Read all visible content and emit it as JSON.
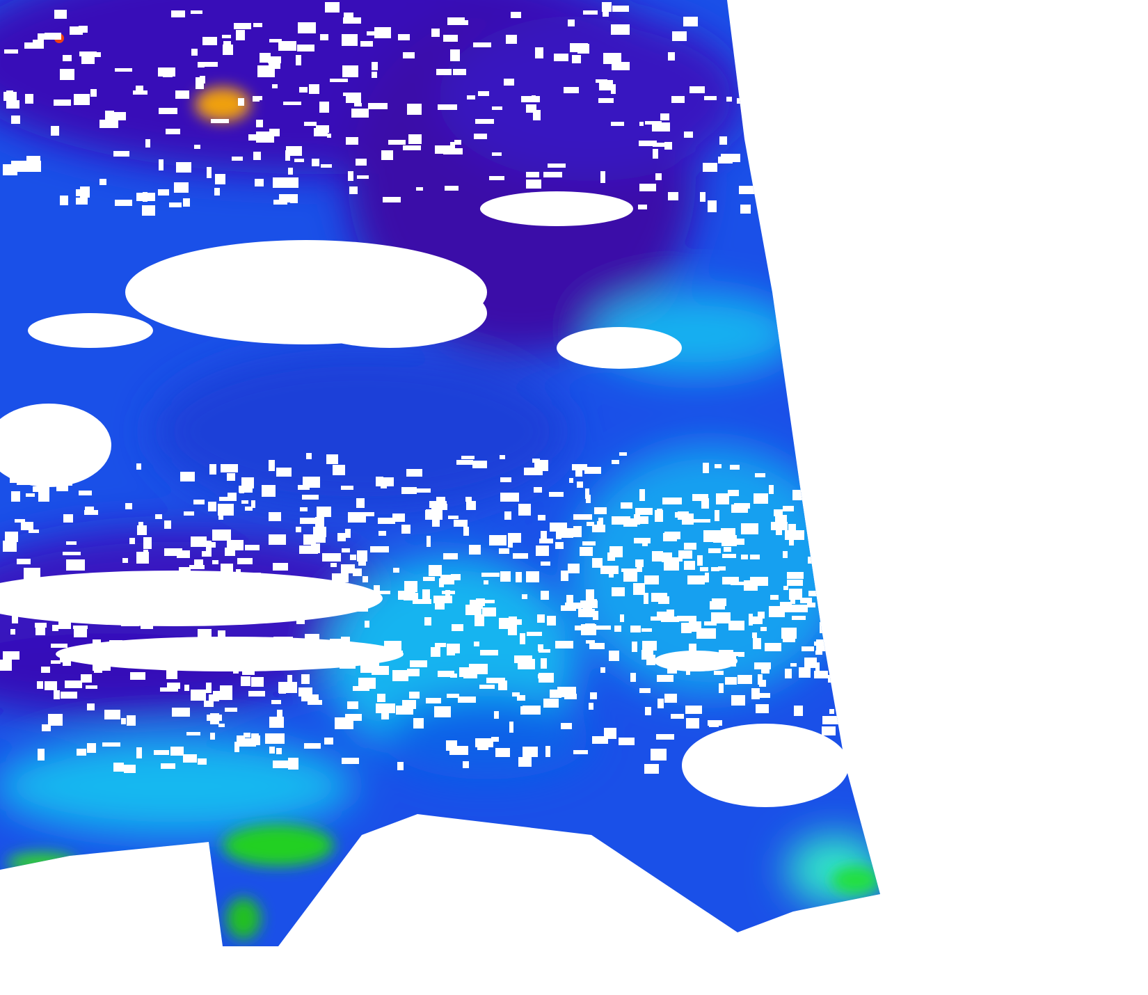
{
  "map": {
    "type": "satellite-swath-raster",
    "background": "#ffffff",
    "palette": {
      "very_low": "#3a0090",
      "low": "#2a1ad0",
      "mid_low": "#1060f0",
      "mid": "#12a8f0",
      "mid_high": "#20e0e0",
      "high": "#10e020",
      "very_high": "#f0e020",
      "max": "#f03010",
      "no_data": "#ffffff"
    }
  }
}
